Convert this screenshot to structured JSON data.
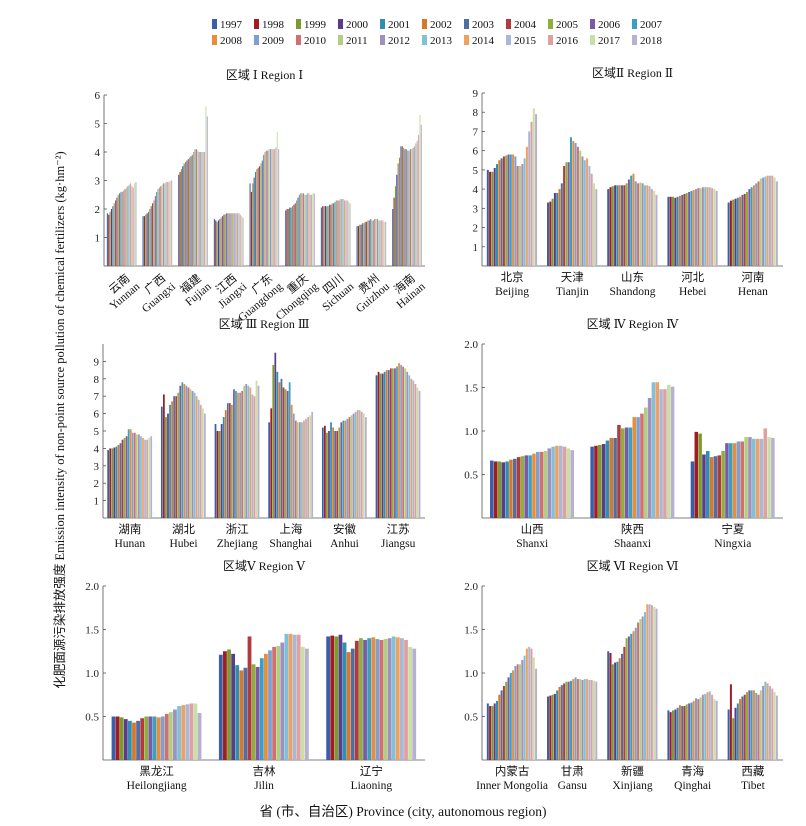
{
  "figure": {
    "ylabel": "化肥面源污染排放强度 Emission intensity of non-point source pollution of chemical fertilizers (kg·hm⁻²)",
    "xlabel": "省 (市、自治区) Province (city, autonomous region)"
  },
  "legend": {
    "years": [
      "1997",
      "1998",
      "1999",
      "2000",
      "2001",
      "2002",
      "2003",
      "2004",
      "2005",
      "2006",
      "2007",
      "2008",
      "2009",
      "2010",
      "2011",
      "2012",
      "2013",
      "2014",
      "2015",
      "2016",
      "2017",
      "2018"
    ],
    "colors": [
      "#3a5fa8",
      "#a01c22",
      "#7d9a2e",
      "#5a3d8a",
      "#2e8fb0",
      "#d9782a",
      "#4e6fa0",
      "#b23a3e",
      "#8fae3c",
      "#7a5aa8",
      "#3aa0c0",
      "#e88d3c",
      "#7f9fd0",
      "#d07070",
      "#b0d080",
      "#a090c0",
      "#80c0d8",
      "#f0a060",
      "#a8b8d8",
      "#e0a0a0",
      "#c8e0a8",
      "#b8b0d0"
    ]
  },
  "chart_data": [
    {
      "type": "bar",
      "title": "区域 Ⅰ Region Ⅰ",
      "ylim": [
        0,
        6
      ],
      "yticks": [
        1,
        2,
        3,
        4,
        5,
        6
      ],
      "xlabel_style": "rotated",
      "categories": [
        {
          "cn": "云南",
          "en": "Yunnan",
          "values": [
            1.85,
            1.8,
            1.9,
            2.0,
            2.1,
            2.2,
            2.3,
            2.4,
            2.5,
            2.55,
            2.6,
            2.6,
            2.65,
            2.7,
            2.75,
            2.8,
            2.85,
            2.9,
            2.8,
            2.75,
            2.9,
            2.95
          ]
        },
        {
          "cn": "广西",
          "en": "Guangxi",
          "values": [
            1.75,
            1.75,
            1.8,
            1.85,
            1.9,
            2.0,
            2.1,
            2.2,
            2.3,
            2.45,
            2.6,
            2.7,
            2.75,
            2.8,
            2.85,
            2.9,
            2.9,
            2.95,
            2.95,
            2.95,
            3.0,
            3.0
          ]
        },
        {
          "cn": "福建",
          "en": "Fujian",
          "values": [
            3.2,
            3.3,
            3.4,
            3.5,
            3.6,
            3.65,
            3.7,
            3.75,
            3.8,
            3.85,
            3.9,
            4.0,
            4.1,
            4.1,
            4.05,
            4.0,
            4.0,
            4.0,
            4.0,
            4.0,
            5.6,
            5.25
          ]
        },
        {
          "cn": "江西",
          "en": "Jiangxi",
          "values": [
            1.65,
            1.6,
            1.55,
            1.6,
            1.65,
            1.7,
            1.75,
            1.8,
            1.82,
            1.85,
            1.85,
            1.85,
            1.85,
            1.85,
            1.85,
            1.85,
            1.85,
            1.85,
            1.85,
            1.8,
            1.75,
            1.7
          ]
        },
        {
          "cn": "广东",
          "en": "Guangdong",
          "values": [
            2.9,
            2.6,
            2.9,
            3.1,
            3.3,
            3.4,
            3.45,
            3.5,
            3.6,
            3.7,
            3.9,
            4.0,
            4.05,
            4.05,
            4.1,
            4.1,
            4.1,
            4.1,
            4.1,
            4.15,
            4.7,
            4.1
          ]
        },
        {
          "cn": "重庆",
          "en": "Chongqing",
          "values": [
            1.95,
            2.0,
            2.0,
            2.05,
            2.05,
            2.1,
            2.15,
            2.2,
            2.3,
            2.4,
            2.5,
            2.55,
            2.55,
            2.55,
            2.5,
            2.5,
            2.55,
            2.55,
            2.5,
            2.5,
            2.55,
            2.55
          ]
        },
        {
          "cn": "四川",
          "en": "Sichuan",
          "values": [
            2.05,
            2.1,
            2.1,
            2.1,
            2.1,
            2.1,
            2.15,
            2.15,
            2.2,
            2.2,
            2.25,
            2.3,
            2.3,
            2.3,
            2.35,
            2.35,
            2.35,
            2.3,
            2.3,
            2.3,
            2.25,
            2.2
          ]
        },
        {
          "cn": "贵州",
          "en": "Guizhou",
          "values": [
            1.4,
            1.4,
            1.45,
            1.45,
            1.5,
            1.5,
            1.55,
            1.55,
            1.6,
            1.6,
            1.65,
            1.6,
            1.6,
            1.65,
            1.65,
            1.65,
            1.6,
            1.6,
            1.6,
            1.6,
            1.55,
            1.55
          ]
        },
        {
          "cn": "海南",
          "en": "Hainan",
          "values": [
            2.0,
            2.4,
            2.8,
            3.2,
            3.6,
            3.8,
            4.2,
            4.2,
            4.15,
            4.1,
            4.1,
            4.05,
            4.05,
            4.1,
            4.1,
            4.15,
            4.2,
            4.3,
            4.4,
            4.6,
            5.3,
            4.95
          ]
        }
      ]
    },
    {
      "type": "bar",
      "title": "区域Ⅱ Region Ⅱ",
      "ylim": [
        0,
        9
      ],
      "yticks": [
        1,
        2,
        3,
        4,
        5,
        6,
        7,
        8,
        9
      ],
      "categories": [
        {
          "cn": "北京",
          "en": "Beijing",
          "values": [
            5.0,
            4.9,
            4.9,
            5.1,
            5.3,
            5.5,
            5.6,
            5.7,
            5.75,
            5.8,
            5.8,
            5.8,
            5.7,
            5.2,
            5.2,
            5.3,
            5.6,
            6.2,
            7.0,
            7.5,
            8.2,
            7.9
          ]
        },
        {
          "cn": "天津",
          "en": "Tianjin",
          "values": [
            3.3,
            3.35,
            3.5,
            3.8,
            3.8,
            4.0,
            4.3,
            5.2,
            5.4,
            5.4,
            6.7,
            6.5,
            6.4,
            6.2,
            6.0,
            5.7,
            5.5,
            5.6,
            5.2,
            4.8,
            4.3,
            4.0
          ]
        },
        {
          "cn": "山东",
          "en": "Shandong",
          "values": [
            4.0,
            4.1,
            4.15,
            4.2,
            4.2,
            4.2,
            4.2,
            4.2,
            4.3,
            4.5,
            4.7,
            4.8,
            4.4,
            4.3,
            4.35,
            4.3,
            4.2,
            4.2,
            4.15,
            4.0,
            3.9,
            3.7
          ]
        },
        {
          "cn": "河北",
          "en": "Hebei",
          "values": [
            3.6,
            3.6,
            3.6,
            3.55,
            3.6,
            3.65,
            3.7,
            3.75,
            3.8,
            3.85,
            3.9,
            3.95,
            4.0,
            4.05,
            4.05,
            4.1,
            4.1,
            4.1,
            4.1,
            4.05,
            4.0,
            3.9
          ]
        },
        {
          "cn": "河南",
          "en": "Henan",
          "values": [
            3.3,
            3.4,
            3.45,
            3.5,
            3.55,
            3.6,
            3.7,
            3.75,
            3.85,
            4.0,
            4.1,
            4.2,
            4.3,
            4.4,
            4.55,
            4.6,
            4.65,
            4.7,
            4.7,
            4.7,
            4.6,
            4.4
          ]
        }
      ]
    },
    {
      "type": "bar",
      "title": "区域 Ⅲ Region Ⅲ",
      "ylim": [
        0,
        10
      ],
      "yticks": [
        1,
        2,
        3,
        4,
        5,
        6,
        7,
        8,
        9
      ],
      "categories": [
        {
          "cn": "湖南",
          "en": "Hunan",
          "values": [
            3.9,
            4.0,
            4.0,
            4.05,
            4.1,
            4.2,
            4.3,
            4.5,
            4.6,
            4.7,
            5.1,
            5.1,
            4.9,
            4.9,
            4.8,
            4.8,
            4.7,
            4.6,
            4.5,
            4.5,
            4.6,
            4.7
          ]
        },
        {
          "cn": "湖北",
          "en": "Hubei",
          "values": [
            6.4,
            7.1,
            5.8,
            6.0,
            6.5,
            6.7,
            7.0,
            7.0,
            7.2,
            7.6,
            7.8,
            7.7,
            7.6,
            7.5,
            7.4,
            7.3,
            7.2,
            7.0,
            6.8,
            6.5,
            6.3,
            6.0
          ]
        },
        {
          "cn": "浙江",
          "en": "Zhejiang",
          "values": [
            5.4,
            5.0,
            5.0,
            5.4,
            5.8,
            6.2,
            6.6,
            6.6,
            6.5,
            7.4,
            7.3,
            7.2,
            7.2,
            7.3,
            7.6,
            7.7,
            7.6,
            7.5,
            7.1,
            7.0,
            7.9,
            7.6
          ]
        },
        {
          "cn": "上海",
          "en": "Shanghai",
          "values": [
            5.5,
            6.3,
            8.8,
            9.5,
            8.4,
            7.8,
            8.0,
            7.5,
            7.4,
            7.3,
            7.8,
            6.5,
            6.0,
            5.6,
            5.5,
            5.5,
            5.5,
            5.6,
            5.7,
            5.8,
            5.9,
            6.1
          ]
        },
        {
          "cn": "安徽",
          "en": "Anhui",
          "values": [
            5.2,
            5.3,
            4.9,
            5.0,
            5.5,
            5.2,
            5.0,
            5.0,
            5.2,
            5.5,
            5.6,
            5.6,
            5.7,
            5.8,
            5.9,
            6.0,
            6.1,
            6.2,
            6.2,
            6.1,
            6.0,
            5.8
          ]
        },
        {
          "cn": "江苏",
          "en": "Jiangsu",
          "values": [
            8.2,
            8.4,
            8.3,
            8.3,
            8.4,
            8.5,
            8.5,
            8.6,
            8.6,
            8.6,
            8.7,
            8.9,
            8.8,
            8.7,
            8.6,
            8.4,
            8.2,
            8.0,
            7.9,
            7.7,
            7.5,
            7.3
          ]
        }
      ]
    },
    {
      "type": "bar",
      "title": "区域 Ⅳ Region Ⅳ",
      "ylim": [
        0,
        2
      ],
      "yticks": [
        0.5,
        1.0,
        1.5,
        2.0
      ],
      "yformat": 1,
      "categories": [
        {
          "cn": "山西",
          "en": "Shanxi",
          "values": [
            0.66,
            0.65,
            0.65,
            0.64,
            0.65,
            0.67,
            0.68,
            0.7,
            0.71,
            0.72,
            0.72,
            0.74,
            0.76,
            0.76,
            0.77,
            0.8,
            0.82,
            0.83,
            0.83,
            0.82,
            0.8,
            0.78
          ]
        },
        {
          "cn": "陕西",
          "en": "Shaanxi",
          "values": [
            0.82,
            0.83,
            0.84,
            0.85,
            0.89,
            0.92,
            0.92,
            1.07,
            1.03,
            1.04,
            1.04,
            1.16,
            1.16,
            1.2,
            1.27,
            1.38,
            1.56,
            1.56,
            1.48,
            1.48,
            1.53,
            1.51
          ]
        },
        {
          "cn": "宁夏",
          "en": "Ningxia",
          "values": [
            0.65,
            0.99,
            0.97,
            0.73,
            0.77,
            0.7,
            0.71,
            0.72,
            0.77,
            0.86,
            0.86,
            0.86,
            0.88,
            0.88,
            0.93,
            0.93,
            0.91,
            0.91,
            0.91,
            1.03,
            0.93,
            0.92
          ]
        }
      ]
    },
    {
      "type": "bar",
      "title": "区域Ⅴ Region Ⅴ",
      "ylim": [
        0,
        2
      ],
      "yticks": [
        0.5,
        1.0,
        1.5,
        2.0
      ],
      "yformat": 1,
      "categories": [
        {
          "cn": "黑龙江",
          "en": "Heilongjiang",
          "values": [
            0.5,
            0.5,
            0.49,
            0.47,
            0.45,
            0.43,
            0.45,
            0.48,
            0.5,
            0.5,
            0.5,
            0.49,
            0.5,
            0.53,
            0.55,
            0.58,
            0.62,
            0.63,
            0.64,
            0.65,
            0.65,
            0.54
          ]
        },
        {
          "cn": "吉林",
          "en": "Jilin",
          "values": [
            1.21,
            1.25,
            1.27,
            1.22,
            1.09,
            1.03,
            1.06,
            1.42,
            1.1,
            1.07,
            1.17,
            1.22,
            1.26,
            1.3,
            1.31,
            1.35,
            1.45,
            1.45,
            1.44,
            1.44,
            1.3,
            1.28
          ]
        },
        {
          "cn": "辽宁",
          "en": "Liaoning",
          "values": [
            1.42,
            1.43,
            1.42,
            1.44,
            1.35,
            1.24,
            1.28,
            1.37,
            1.4,
            1.38,
            1.4,
            1.41,
            1.39,
            1.38,
            1.39,
            1.4,
            1.42,
            1.41,
            1.4,
            1.38,
            1.3,
            1.28
          ]
        }
      ]
    },
    {
      "type": "bar",
      "title": "区域 Ⅵ Region Ⅵ",
      "ylim": [
        0,
        2
      ],
      "yticks": [
        0.5,
        1.0,
        1.5,
        2.0
      ],
      "yformat": 1,
      "categories": [
        {
          "cn": "内蒙古",
          "en": "Inner Mongolia",
          "values": [
            0.65,
            0.62,
            0.62,
            0.65,
            0.68,
            0.75,
            0.8,
            0.85,
            0.9,
            0.95,
            1.0,
            1.03,
            1.08,
            1.1,
            1.1,
            1.15,
            1.2,
            1.28,
            1.3,
            1.28,
            1.18,
            1.05
          ]
        },
        {
          "cn": "甘肃",
          "en": "Gansu",
          "values": [
            0.73,
            0.74,
            0.75,
            0.76,
            0.8,
            0.84,
            0.86,
            0.88,
            0.9,
            0.9,
            0.91,
            0.93,
            0.95,
            0.93,
            0.93,
            0.92,
            0.93,
            0.93,
            0.92,
            0.92,
            0.91,
            0.9
          ]
        },
        {
          "cn": "新疆",
          "en": "Xinjiang",
          "values": [
            1.25,
            1.23,
            1.1,
            1.12,
            1.13,
            1.17,
            1.22,
            1.3,
            1.4,
            1.42,
            1.45,
            1.48,
            1.52,
            1.58,
            1.62,
            1.65,
            1.7,
            1.79,
            1.79,
            1.78,
            1.76,
            1.74
          ]
        },
        {
          "cn": "青海",
          "en": "Qinghai",
          "values": [
            0.57,
            0.55,
            0.57,
            0.58,
            0.6,
            0.63,
            0.62,
            0.62,
            0.64,
            0.65,
            0.66,
            0.68,
            0.71,
            0.7,
            0.72,
            0.75,
            0.76,
            0.78,
            0.79,
            0.75,
            0.7,
            0.68
          ]
        },
        {
          "cn": "西藏",
          "en": "Tibet",
          "values": [
            0.58,
            0.87,
            0.48,
            0.6,
            0.65,
            0.7,
            0.73,
            0.75,
            0.78,
            0.8,
            0.8,
            0.8,
            0.77,
            0.75,
            0.8,
            0.85,
            0.9,
            0.88,
            0.85,
            0.82,
            0.78,
            0.74
          ]
        }
      ]
    }
  ]
}
